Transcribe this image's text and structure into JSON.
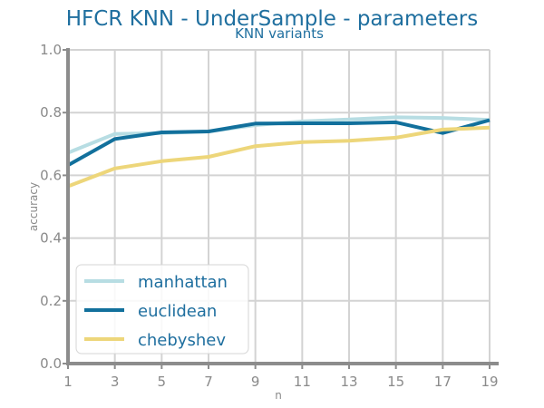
{
  "chart_data": {
    "type": "line",
    "title": "HFCR KNN - UnderSample - parameters",
    "subtitle": "KNN variants",
    "xlabel": "n",
    "ylabel": "accuracy",
    "x": [
      1,
      3,
      5,
      7,
      9,
      11,
      13,
      15,
      17,
      19
    ],
    "xticks": [
      "1",
      "3",
      "5",
      "7",
      "9",
      "11",
      "13",
      "15",
      "17",
      "19"
    ],
    "yticks": [
      "0.0",
      "0.2",
      "0.4",
      "0.6",
      "0.8",
      "1.0"
    ],
    "xlim": [
      1,
      19
    ],
    "ylim": [
      0,
      1
    ],
    "grid": true,
    "legend_position": "lower-left",
    "series": [
      {
        "name": "manhattan",
        "color": "#b7dde3",
        "values": [
          0.672,
          0.732,
          0.735,
          0.74,
          0.76,
          0.772,
          0.778,
          0.785,
          0.783,
          0.777
        ]
      },
      {
        "name": "euclidean",
        "color": "#12709c",
        "values": [
          0.632,
          0.716,
          0.737,
          0.74,
          0.765,
          0.766,
          0.766,
          0.769,
          0.735,
          0.776
        ]
      },
      {
        "name": "chebyshev",
        "color": "#edd67a",
        "values": [
          0.565,
          0.622,
          0.645,
          0.659,
          0.693,
          0.706,
          0.71,
          0.72,
          0.746,
          0.752
        ]
      }
    ]
  }
}
